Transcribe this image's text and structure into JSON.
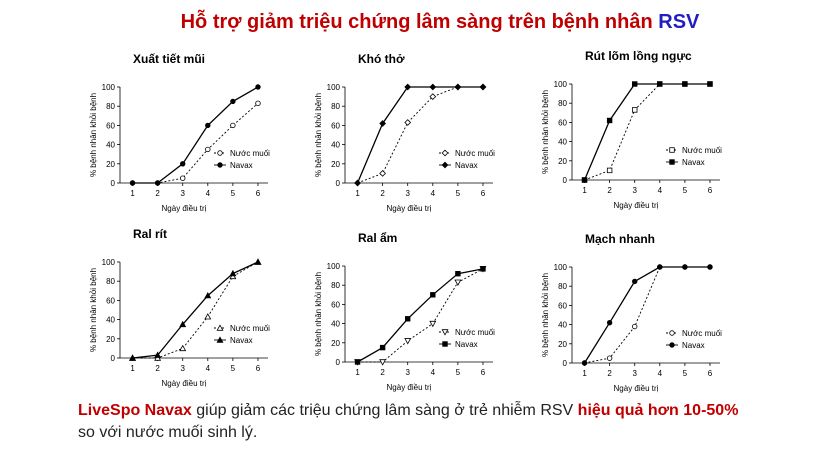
{
  "title": {
    "main": "Hỗ trợ giảm triệu chứng lâm sàng trên bệnh nhân",
    "highlight": "RSV"
  },
  "footer": {
    "brand": "LiveSpo Navax",
    "text1": "giúp giảm các triệu chứng lâm sàng ở trẻ nhiễm RSV",
    "emphasis": "hiệu quả hơn 10-50%",
    "text2": "so với nước muối sinh lý."
  },
  "chart_data": [
    {
      "type": "line",
      "title": "Xuất tiết mũi",
      "x_label": "Ngày điều trị",
      "y_label": "% bệnh nhân khỏi bệnh",
      "x": [
        1,
        2,
        3,
        4,
        5,
        6
      ],
      "xlim": [
        0.5,
        6.4
      ],
      "xticks": [
        1,
        2,
        3,
        4,
        5,
        6
      ],
      "ylim": [
        0,
        100
      ],
      "yticks": [
        0,
        20,
        40,
        60,
        80,
        100
      ],
      "series": [
        {
          "name": "Nước muối",
          "color": "#000000",
          "dashed": true,
          "marker": "circle",
          "filled": false,
          "values": [
            0,
            0,
            5,
            35,
            60,
            83
          ]
        },
        {
          "name": "Navax",
          "color": "#000000",
          "dashed": false,
          "marker": "circle",
          "filled": true,
          "values": [
            0,
            0,
            20,
            60,
            85,
            100
          ]
        }
      ]
    },
    {
      "type": "line",
      "title": "Khó thở",
      "x_label": "Ngày điều trị",
      "y_label": "% bệnh nhân khỏi bệnh",
      "x": [
        1,
        2,
        3,
        4,
        5,
        6
      ],
      "xlim": [
        0.5,
        6.4
      ],
      "xticks": [
        1,
        2,
        3,
        4,
        5,
        6
      ],
      "ylim": [
        0,
        100
      ],
      "yticks": [
        0,
        20,
        40,
        60,
        80,
        100
      ],
      "series": [
        {
          "name": "Nước muối",
          "color": "#000000",
          "dashed": true,
          "marker": "diamond",
          "filled": false,
          "values": [
            0,
            10,
            63,
            90,
            100,
            100
          ]
        },
        {
          "name": "Navax",
          "color": "#000000",
          "dashed": false,
          "marker": "diamond",
          "filled": true,
          "values": [
            0,
            62,
            100,
            100,
            100,
            100
          ]
        }
      ]
    },
    {
      "type": "line",
      "title": "Rút lõm lồng ngực",
      "x_label": "Ngày điều trị",
      "y_label": "% bệnh nhân khỏi bệnh",
      "x": [
        1,
        2,
        3,
        4,
        5,
        6
      ],
      "xlim": [
        0.5,
        6.4
      ],
      "xticks": [
        1,
        2,
        3,
        4,
        5,
        6
      ],
      "ylim": [
        0,
        100
      ],
      "yticks": [
        0,
        20,
        40,
        60,
        80,
        100
      ],
      "series": [
        {
          "name": "Nước muối",
          "color": "#000000",
          "dashed": true,
          "marker": "square",
          "filled": false,
          "values": [
            0,
            10,
            73,
            100,
            100,
            100
          ]
        },
        {
          "name": "Navax",
          "color": "#000000",
          "dashed": false,
          "marker": "square",
          "filled": true,
          "values": [
            0,
            62,
            100,
            100,
            100,
            100
          ]
        }
      ]
    },
    {
      "type": "line",
      "title": "Ral rít",
      "x_label": "Ngày điều trị",
      "y_label": "% bệnh nhân khỏi bệnh",
      "x": [
        1,
        2,
        3,
        4,
        5,
        6
      ],
      "xlim": [
        0.5,
        6.4
      ],
      "xticks": [
        1,
        2,
        3,
        4,
        5,
        6
      ],
      "ylim": [
        0,
        100
      ],
      "yticks": [
        0,
        20,
        40,
        60,
        80,
        100
      ],
      "series": [
        {
          "name": "Nước muối",
          "color": "#000000",
          "dashed": true,
          "marker": "triangle",
          "filled": false,
          "values": [
            0,
            0,
            10,
            43,
            85,
            100
          ]
        },
        {
          "name": "Navax",
          "color": "#000000",
          "dashed": false,
          "marker": "triangle",
          "filled": true,
          "values": [
            0,
            3,
            35,
            65,
            88,
            100
          ]
        }
      ]
    },
    {
      "type": "line",
      "title": "Ral ẩm",
      "x_label": "Ngày điều trị",
      "y_label": "% bệnh nhân khỏi bệnh",
      "x": [
        1,
        2,
        3,
        4,
        5,
        6
      ],
      "xlim": [
        0.5,
        6.4
      ],
      "xticks": [
        1,
        2,
        3,
        4,
        5,
        6
      ],
      "ylim": [
        0,
        100
      ],
      "yticks": [
        0,
        20,
        40,
        60,
        80,
        100
      ],
      "series": [
        {
          "name": "Nước muối",
          "color": "#000000",
          "dashed": true,
          "marker": "triangle-down",
          "filled": false,
          "values": [
            0,
            0,
            22,
            40,
            83,
            97
          ]
        },
        {
          "name": "Navax",
          "color": "#000000",
          "dashed": false,
          "marker": "square",
          "filled": true,
          "values": [
            0,
            15,
            45,
            70,
            92,
            97
          ]
        }
      ]
    },
    {
      "type": "line",
      "title": "Mạch nhanh",
      "x_label": "Ngày điều trị",
      "y_label": "% bệnh nhân khỏi bệnh",
      "x": [
        1,
        2,
        3,
        4,
        5,
        6
      ],
      "xlim": [
        0.5,
        6.4
      ],
      "xticks": [
        1,
        2,
        3,
        4,
        5,
        6
      ],
      "ylim": [
        0,
        100
      ],
      "yticks": [
        0,
        20,
        40,
        60,
        80,
        100
      ],
      "series": [
        {
          "name": "Nước muối",
          "color": "#000000",
          "dashed": true,
          "marker": "circle",
          "filled": false,
          "values": [
            0,
            5,
            38,
            100,
            100,
            100
          ]
        },
        {
          "name": "Navax",
          "color": "#000000",
          "dashed": false,
          "marker": "circle",
          "filled": true,
          "values": [
            0,
            42,
            85,
            100,
            100,
            100
          ]
        }
      ]
    }
  ]
}
